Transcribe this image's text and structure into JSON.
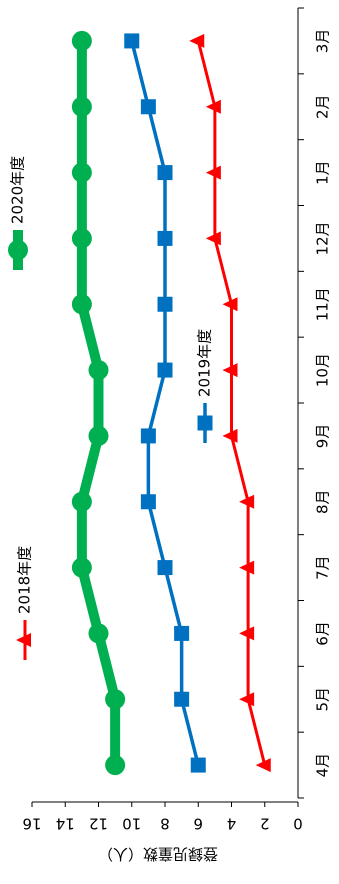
{
  "chart_data": {
    "type": "line",
    "title": "",
    "xlabel": "",
    "ylabel": "登録児童数（人）",
    "categories": [
      "4月",
      "5月",
      "6月",
      "7月",
      "8月",
      "9月",
      "10月",
      "11月",
      "12月",
      "1月",
      "2月",
      "3月"
    ],
    "ylim": [
      0,
      16
    ],
    "yticks": [
      0,
      2,
      4,
      6,
      8,
      10,
      12,
      14,
      16
    ],
    "grid": false,
    "legend_position": "top",
    "orientation": "rotated-90-clockwise",
    "series": [
      {
        "name": "2018年度",
        "color": "#ff0000",
        "marker": "triangle",
        "values": [
          2,
          3,
          3,
          3,
          3,
          4,
          4,
          4,
          5,
          5,
          5,
          6
        ]
      },
      {
        "name": "2019年度",
        "color": "#0070c0",
        "marker": "square",
        "values": [
          6,
          7,
          7,
          8,
          9,
          9,
          8,
          8,
          8,
          8,
          9,
          10
        ]
      },
      {
        "name": "2020年度",
        "color": "#00b050",
        "marker": "circle",
        "values": [
          11,
          11,
          12,
          13,
          13,
          12,
          12,
          13,
          13,
          13,
          13,
          13
        ]
      }
    ]
  }
}
